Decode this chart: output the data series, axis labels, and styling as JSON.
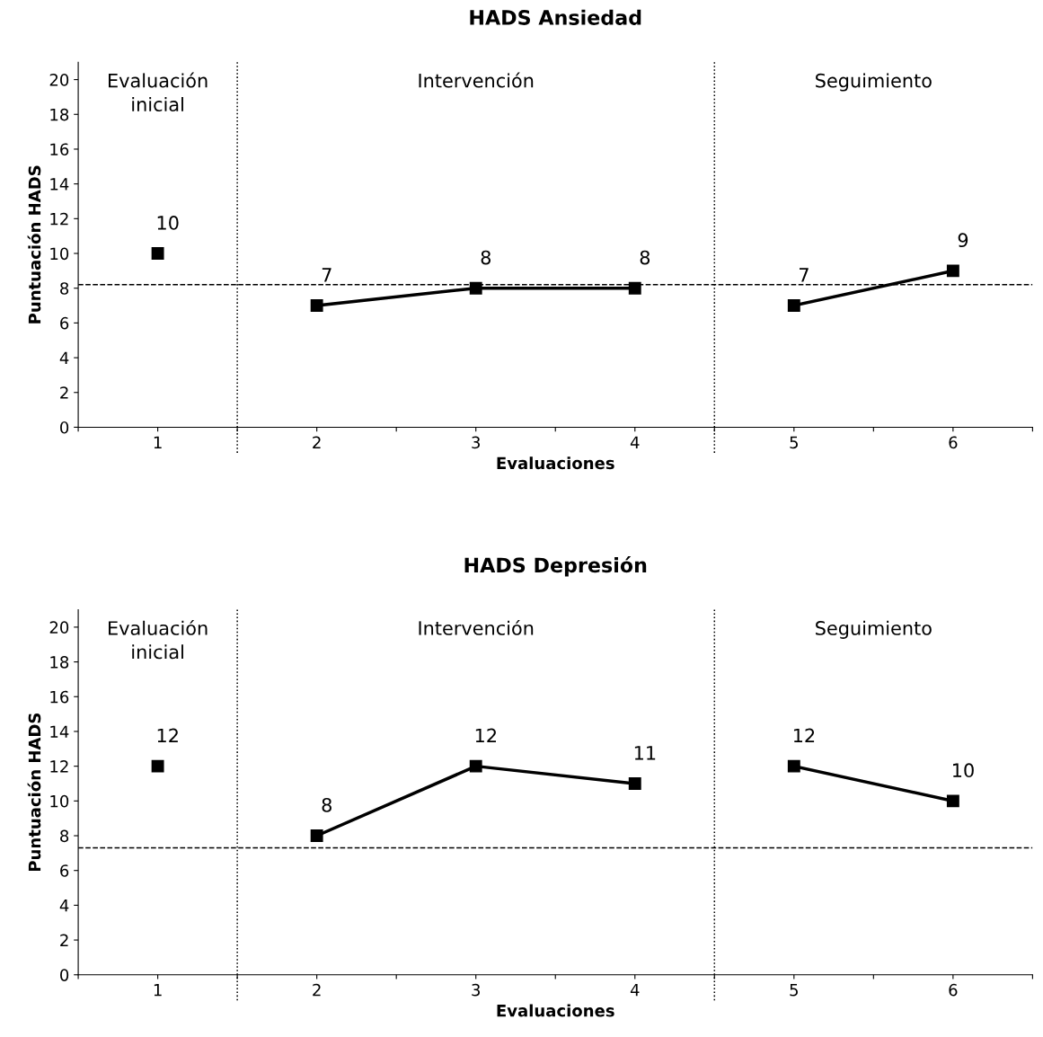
{
  "chart_data": [
    {
      "type": "line",
      "title": "HADS Ansiedad",
      "xlabel": "Evaluaciones",
      "ylabel": "Puntuación HADS",
      "xlim": [
        0.5,
        6.5
      ],
      "xticks": [
        {
          "value": 0.5,
          "label": null
        },
        1,
        {
          "value": 1.5,
          "label": null
        },
        2,
        {
          "value": 2.5,
          "label": null
        },
        3,
        {
          "value": 3.5,
          "label": null
        },
        4,
        {
          "value": 4.5,
          "label": null
        },
        5,
        {
          "value": 5.5,
          "label": null
        },
        6,
        {
          "value": 6.5,
          "label": null
        }
      ],
      "ylim": [
        0,
        21
      ],
      "yticks": [
        0,
        2,
        4,
        6,
        8,
        10,
        12,
        14,
        16,
        18,
        20
      ],
      "series": [
        {
          "x": [
            1
          ],
          "values": [
            10
          ],
          "color": "#000000"
        },
        {
          "x": [
            2,
            3,
            4
          ],
          "values": [
            7,
            8,
            8
          ],
          "color": "#000000"
        },
        {
          "x": [
            5,
            6
          ],
          "values": [
            7,
            9
          ],
          "color": "#000000"
        }
      ],
      "marker": "square",
      "line_style": "solid",
      "data_labels": true,
      "grid": false,
      "ref_lines": [
        {
          "axis": "y",
          "value": 8.2,
          "line_style": "dashed",
          "color": "#000000"
        },
        {
          "axis": "x",
          "value": 1.5,
          "line_style": "dotted",
          "color": "#000000"
        },
        {
          "axis": "x",
          "value": 4.5,
          "line_style": "dotted",
          "color": "#000000"
        }
      ],
      "annotations": [
        "Evaluación\ninicial",
        "Intervención",
        "Seguimiento"
      ]
    },
    {
      "type": "line",
      "title": "HADS Depresión",
      "xlabel": "Evaluaciones",
      "ylabel": "Puntuación HADS",
      "xlim": [
        0.5,
        6.5
      ],
      "xticks": [
        {
          "value": 0.5,
          "label": null
        },
        1,
        {
          "value": 1.5,
          "label": null
        },
        2,
        {
          "value": 2.5,
          "label": null
        },
        3,
        {
          "value": 3.5,
          "label": null
        },
        4,
        {
          "value": 4.5,
          "label": null
        },
        5,
        {
          "value": 5.5,
          "label": null
        },
        6,
        {
          "value": 6.5,
          "label": null
        }
      ],
      "ylim": [
        0,
        21
      ],
      "yticks": [
        0,
        2,
        4,
        6,
        8,
        10,
        12,
        14,
        16,
        18,
        20
      ],
      "series": [
        {
          "x": [
            1
          ],
          "values": [
            12
          ],
          "color": "#000000"
        },
        {
          "x": [
            2,
            3,
            4
          ],
          "values": [
            8,
            12,
            11
          ],
          "color": "#000000"
        },
        {
          "x": [
            5,
            6
          ],
          "values": [
            12,
            10
          ],
          "color": "#000000"
        }
      ],
      "marker": "square",
      "line_style": "solid",
      "data_labels": true,
      "grid": false,
      "ref_lines": [
        {
          "axis": "y",
          "value": 7.3,
          "line_style": "dashed",
          "color": "#000000"
        },
        {
          "axis": "x",
          "value": 1.5,
          "line_style": "dotted",
          "color": "#000000"
        },
        {
          "axis": "x",
          "value": 4.5,
          "line_style": "dotted",
          "color": "#000000"
        }
      ],
      "annotations": [
        "Evaluación\ninicial",
        "Intervención",
        "Seguimiento"
      ]
    }
  ]
}
